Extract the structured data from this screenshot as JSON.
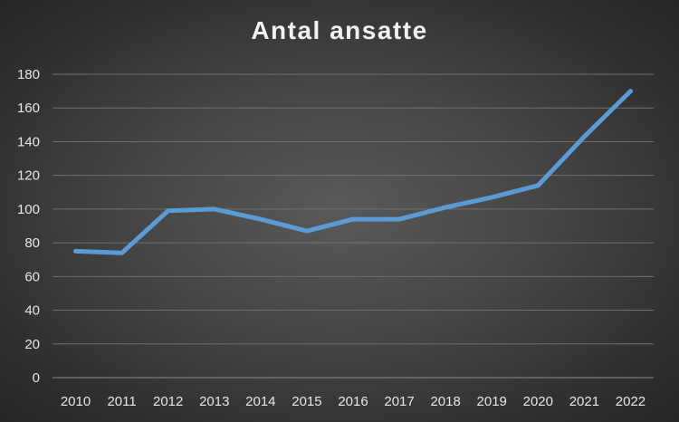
{
  "chart_data": {
    "type": "line",
    "title": "Antal ansatte",
    "xlabel": "",
    "ylabel": "",
    "categories": [
      "2010",
      "2011",
      "2012",
      "2013",
      "2014",
      "2015",
      "2016",
      "2017",
      "2018",
      "2019",
      "2020",
      "2021",
      "2022"
    ],
    "series": [
      {
        "values": [
          75,
          74,
          99,
          100,
          94,
          87,
          94,
          94,
          101,
          107,
          114,
          143,
          170
        ],
        "color": "#5b9bd5"
      }
    ],
    "ylim": [
      0,
      180
    ],
    "yticks": [
      0,
      20,
      40,
      60,
      80,
      100,
      120,
      140,
      160,
      180
    ],
    "grid": true,
    "legend": "none"
  }
}
